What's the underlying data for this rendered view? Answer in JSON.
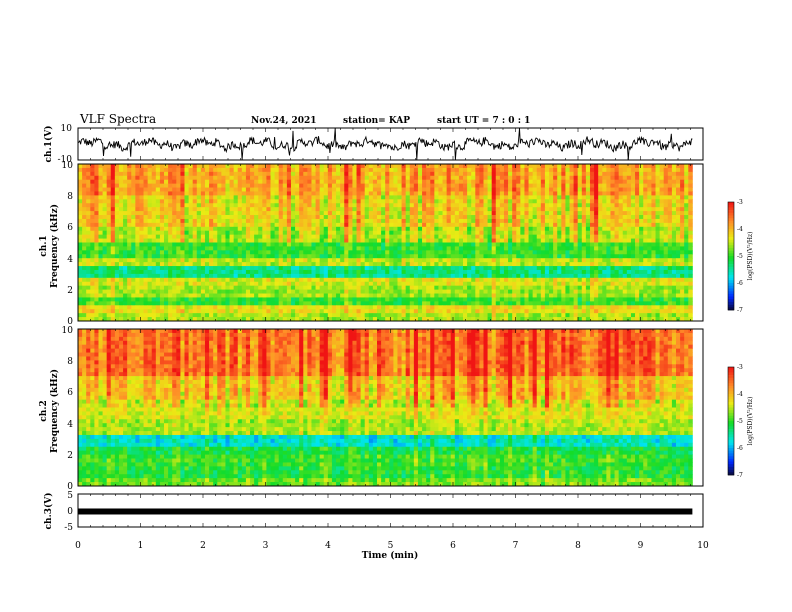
{
  "header": {
    "title": "VLF Spectra",
    "date": "Nov.24, 2021",
    "station": "station= KAP",
    "start": "start  UT  =   7 : 0  : 1"
  },
  "chart_data": [
    {
      "id": "ch1-waveform",
      "type": "line",
      "ylabel": "ch.1(V)",
      "ylim": [
        -10,
        10
      ],
      "yticks": [
        "10",
        "-10"
      ],
      "xlim": [
        0,
        10
      ],
      "xrange_data": [
        0,
        9.83
      ]
    },
    {
      "id": "ch1-spectrogram",
      "type": "heatmap",
      "ylabel_1": "ch.1",
      "ylabel_2": "Frequency (kHz)",
      "ylim": [
        0,
        10
      ],
      "yticks": [
        "0",
        "2",
        "4",
        "6",
        "8",
        "10"
      ],
      "xlim": [
        0,
        10
      ],
      "xrange_data": [
        0,
        9.83
      ],
      "colorbar": {
        "label": "log(PSD)(V²/Hz)",
        "range": [
          -7,
          -3
        ],
        "ticks": [
          "-3",
          "-4",
          "-5",
          "-6",
          "-7"
        ]
      },
      "bands": [
        {
          "from": 0,
          "to": 0.5,
          "level": -4.6
        },
        {
          "from": 0.5,
          "to": 1.0,
          "level": -4.3
        },
        {
          "from": 1.0,
          "to": 1.6,
          "level": -5.0
        },
        {
          "from": 1.6,
          "to": 2.2,
          "level": -4.6
        },
        {
          "from": 2.2,
          "to": 2.8,
          "level": -4.4
        },
        {
          "from": 2.8,
          "to": 3.4,
          "level": -5.4
        },
        {
          "from": 3.4,
          "to": 4.0,
          "level": -4.5
        },
        {
          "from": 4.0,
          "to": 5.0,
          "level": -5.0
        },
        {
          "from": 5.0,
          "to": 6.0,
          "level": -4.5
        },
        {
          "from": 6.0,
          "to": 8.0,
          "level": -4.2
        },
        {
          "from": 8.0,
          "to": 10.0,
          "level": -3.9
        }
      ]
    },
    {
      "id": "ch2-spectrogram",
      "type": "heatmap",
      "ylabel_1": "ch.2",
      "ylabel_2": "Frequency (kHz)",
      "ylim": [
        0,
        10
      ],
      "yticks": [
        "0",
        "2",
        "4",
        "6",
        "8",
        "10"
      ],
      "xlim": [
        0,
        10
      ],
      "xrange_data": [
        0,
        9.83
      ],
      "colorbar": {
        "label": "log(PSD)(V²/Hz)",
        "range": [
          -7,
          -3
        ],
        "ticks": [
          "-3",
          "-4",
          "-5",
          "-6",
          "-7"
        ]
      },
      "bands": [
        {
          "from": 0,
          "to": 0.5,
          "level": -4.8
        },
        {
          "from": 0.5,
          "to": 1.2,
          "level": -5.1
        },
        {
          "from": 1.2,
          "to": 2.0,
          "level": -5.0
        },
        {
          "from": 2.0,
          "to": 2.4,
          "level": -5.2
        },
        {
          "from": 2.4,
          "to": 3.2,
          "level": -5.7
        },
        {
          "from": 3.2,
          "to": 4.2,
          "level": -4.6
        },
        {
          "from": 4.2,
          "to": 5.5,
          "level": -4.4
        },
        {
          "from": 5.5,
          "to": 7.0,
          "level": -4.1
        },
        {
          "from": 7.0,
          "to": 10.0,
          "level": -3.6
        }
      ]
    },
    {
      "id": "ch3-trace",
      "type": "line",
      "ylabel": "ch.3(V)",
      "ylim": [
        -5,
        5
      ],
      "yticks": [
        "5",
        "0",
        "-5"
      ],
      "xlim": [
        0,
        10
      ],
      "xrange_data": [
        0,
        9.83
      ],
      "level": -0.3,
      "xlabel": "Time (min)",
      "xticks": [
        "0",
        "1",
        "2",
        "3",
        "4",
        "5",
        "6",
        "7",
        "8",
        "9",
        "10"
      ]
    }
  ]
}
